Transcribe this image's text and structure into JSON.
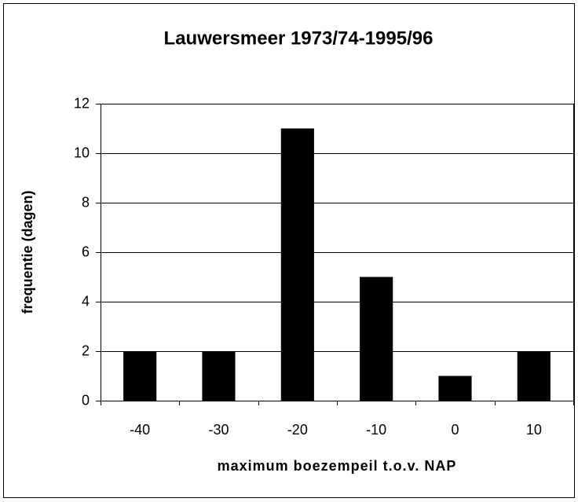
{
  "chart_data": {
    "type": "bar",
    "title": "Lauwersmeer 1973/74-1995/96",
    "x_label": "maximum boezempeil t.o.v.  NAP",
    "y_label": "frequentie (dagen)",
    "categories": [
      "-40",
      "-30",
      "-20",
      "-10",
      "0",
      "10"
    ],
    "values": [
      2,
      2,
      11,
      5,
      1,
      2
    ],
    "color": "#000000",
    "ylim": [
      0,
      12
    ],
    "yticks": [
      0,
      2,
      4,
      6,
      8,
      10,
      12
    ],
    "grid": true
  }
}
